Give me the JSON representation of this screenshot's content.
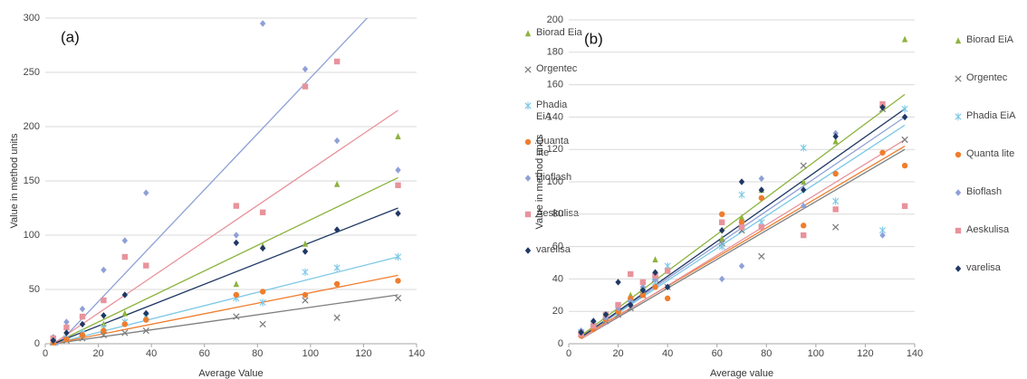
{
  "chart_data": [
    {
      "type": "scatter",
      "panel_label": "(a)",
      "x_label": "Average Value",
      "y_label": "Value in method units",
      "xlim": [
        0,
        140
      ],
      "ylim": [
        0,
        300
      ],
      "xticks": [
        0,
        20,
        40,
        60,
        80,
        100,
        120,
        140
      ],
      "yticks": [
        0,
        50,
        100,
        150,
        200,
        250,
        300
      ],
      "grid": true,
      "legend": "right",
      "x": [
        3,
        8,
        14,
        22,
        30,
        38,
        72,
        82,
        98,
        110,
        133
      ],
      "trend_x": [
        3,
        133
      ],
      "series": [
        {
          "name": "Biorad Eia",
          "color": "#8db33f",
          "marker": "triangle",
          "values": [
            2,
            5,
            10,
            18,
            28,
            25,
            55,
            90,
            92,
            147,
            191
          ],
          "trend": [
            0,
            153
          ]
        },
        {
          "name": "Orgentec",
          "color": "#7f7f7f",
          "marker": "x",
          "values": [
            1,
            3,
            5,
            8,
            10,
            12,
            25,
            18,
            40,
            24,
            42
          ],
          "trend": [
            0,
            45
          ]
        },
        {
          "name": "Phadia EiA",
          "color": "#7cc8e6",
          "marker": "star",
          "values": [
            2,
            5,
            10,
            15,
            20,
            25,
            42,
            38,
            66,
            70,
            80
          ],
          "trend": [
            0,
            80
          ]
        },
        {
          "name": "Quanta lite",
          "color": "#ef7d2d",
          "marker": "circle",
          "values": [
            1,
            4,
            8,
            12,
            18,
            22,
            45,
            48,
            45,
            55,
            58
          ],
          "trend": [
            0,
            63
          ]
        },
        {
          "name": "Bioflash",
          "color": "#8ea0d6",
          "marker": "diamond",
          "values": [
            6,
            20,
            32,
            68,
            95,
            139,
            100,
            295,
            253,
            187,
            160
          ],
          "trend": [
            -5,
            330
          ]
        },
        {
          "name": "Aeskulisa",
          "color": "#e8939c",
          "marker": "square",
          "values": [
            5,
            15,
            25,
            40,
            80,
            72,
            127,
            121,
            237,
            260,
            146
          ],
          "trend": [
            0,
            215
          ]
        },
        {
          "name": "varelisa",
          "color": "#1f3864",
          "marker": "diamond",
          "values": [
            3,
            10,
            18,
            26,
            45,
            28,
            93,
            88,
            85,
            105,
            120
          ],
          "trend": [
            0,
            125
          ]
        }
      ]
    },
    {
      "type": "scatter",
      "panel_label": "(b)",
      "x_label": "Average value",
      "y_label": "Value in method units",
      "xlim": [
        0,
        140
      ],
      "ylim": [
        0,
        200
      ],
      "xticks": [
        0,
        20,
        40,
        60,
        80,
        100,
        120,
        140
      ],
      "yticks": [
        0,
        20,
        40,
        60,
        80,
        100,
        120,
        140,
        160,
        180,
        200
      ],
      "grid": true,
      "legend": "right",
      "x": [
        5,
        10,
        15,
        20,
        25,
        30,
        35,
        40,
        62,
        70,
        78,
        95,
        108,
        127,
        136
      ],
      "trend_x": [
        5,
        136
      ],
      "series": [
        {
          "name": "Biorad EiA",
          "color": "#8db33f",
          "marker": "triangle",
          "values": [
            8,
            12,
            18,
            20,
            30,
            35,
            52,
            45,
            65,
            78,
            95,
            100,
            125,
            147,
            188
          ],
          "trend": [
            5,
            154
          ]
        },
        {
          "name": "Orgentec",
          "color": "#7f7f7f",
          "marker": "x",
          "values": [
            6,
            10,
            14,
            18,
            22,
            30,
            40,
            35,
            62,
            70,
            54,
            110,
            72,
            145,
            126
          ],
          "trend": [
            3,
            120
          ]
        },
        {
          "name": "Phadia EiA",
          "color": "#7cc8e6",
          "marker": "star",
          "values": [
            7,
            12,
            15,
            22,
            25,
            32,
            38,
            48,
            60,
            92,
            75,
            121,
            88,
            70,
            145
          ],
          "trend": [
            4,
            135
          ]
        },
        {
          "name": "Quanta lite",
          "color": "#ef7d2d",
          "marker": "circle",
          "values": [
            5,
            9,
            15,
            20,
            28,
            30,
            35,
            28,
            80,
            75,
            90,
            73,
            105,
            118,
            110
          ],
          "trend": [
            4,
            122
          ]
        },
        {
          "name": "Bioflash",
          "color": "#8ea0d6",
          "marker": "diamond",
          "values": [
            8,
            12,
            16,
            22,
            26,
            35,
            40,
            45,
            40,
            48,
            102,
            85,
            130,
            67,
            140
          ],
          "trend": [
            4,
            140
          ]
        },
        {
          "name": "Aeskulisa",
          "color": "#e8939c",
          "marker": "square",
          "values": [
            6,
            11,
            18,
            24,
            43,
            38,
            42,
            45,
            75,
            72,
            72,
            67,
            83,
            148,
            85
          ],
          "trend": [
            3,
            126
          ]
        },
        {
          "name": "varelisa",
          "color": "#1f3864",
          "marker": "diamond",
          "values": [
            7,
            14,
            18,
            38,
            24,
            33,
            44,
            35,
            70,
            100,
            95,
            95,
            128,
            146,
            140
          ],
          "trend": [
            4,
            145
          ]
        }
      ]
    }
  ]
}
